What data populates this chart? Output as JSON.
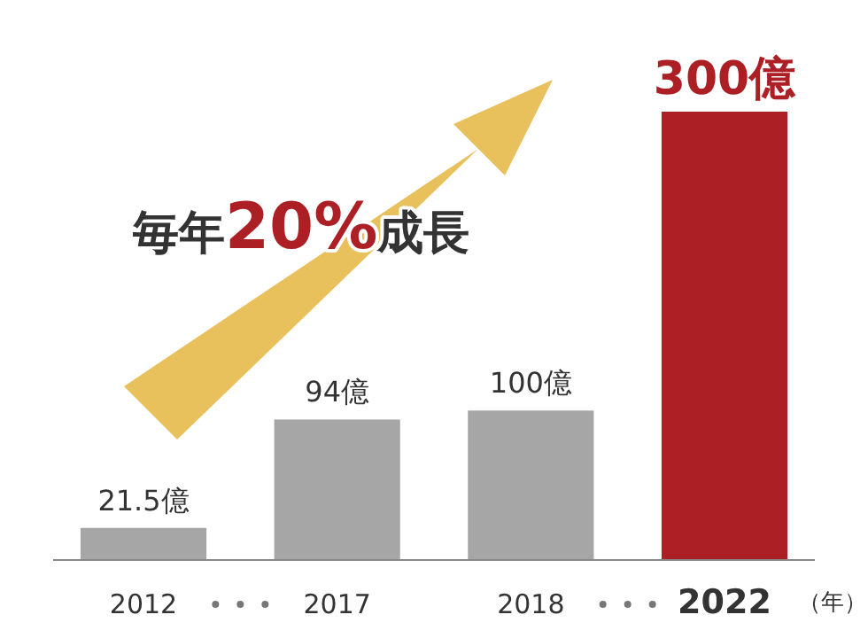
{
  "chart_data": {
    "type": "bar",
    "categories": [
      "2012",
      "2017",
      "2018",
      "2022"
    ],
    "values": [
      21.5,
      94,
      100,
      300
    ],
    "colors": [
      "#a6a6a6",
      "#a6a6a6",
      "#a6a6a6",
      "#ac1f24"
    ],
    "value_labels": [
      "21.5億",
      "94億",
      "100億",
      "300億"
    ],
    "xlabel": "（年）",
    "annotations": [
      "毎年20%成長"
    ]
  }
}
